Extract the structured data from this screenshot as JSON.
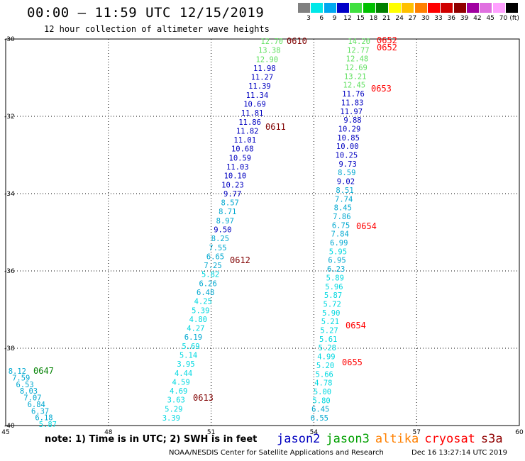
{
  "title": "00:00 – 11:59 UTC 12/15/2019",
  "subtitle": "12 hour collection of altimeter wave heights",
  "legend": {
    "unit": "(ft)",
    "swatches": [
      {
        "color": "#808080",
        "label": "3"
      },
      {
        "color": "#00e8e8",
        "label": "6"
      },
      {
        "color": "#00a8f0",
        "label": "9"
      },
      {
        "color": "#0000c8",
        "label": "12"
      },
      {
        "color": "#40e040",
        "label": "15"
      },
      {
        "color": "#00c000",
        "label": "18"
      },
      {
        "color": "#008000",
        "label": "21"
      },
      {
        "color": "#ffff00",
        "label": "24"
      },
      {
        "color": "#ffc000",
        "label": "27"
      },
      {
        "color": "#ff8000",
        "label": "30"
      },
      {
        "color": "#ff0000",
        "label": "33"
      },
      {
        "color": "#d00000",
        "label": "36"
      },
      {
        "color": "#900000",
        "label": "39"
      },
      {
        "color": "#a000a0",
        "label": "42"
      },
      {
        "color": "#e070e0",
        "label": "45"
      },
      {
        "color": "#ffa0ff",
        "label": "70"
      },
      {
        "color": "#000000",
        "label": ""
      }
    ]
  },
  "axes": {
    "lat_ticks": [
      "-30",
      "-32",
      "-34",
      "-36",
      "-38",
      "-40"
    ],
    "lon_ticks": [
      "45",
      "48",
      "51",
      "54",
      "57",
      "60"
    ]
  },
  "tracks": {
    "left": [
      {
        "v": "8.12",
        "c": "#00a8d0"
      },
      {
        "v": "7.59",
        "c": "#00a8d0"
      },
      {
        "v": "6.53",
        "c": "#00a8d0"
      },
      {
        "v": "8.03",
        "c": "#00a8d0"
      },
      {
        "v": "7.07",
        "c": "#00a8d0"
      },
      {
        "v": "6.84",
        "c": "#00a8d0"
      },
      {
        "v": "6.37",
        "c": "#00a8d0"
      },
      {
        "v": "6.18",
        "c": "#00a8d0"
      },
      {
        "v": "5.87",
        "c": "#00d8e0"
      }
    ],
    "middle": [
      {
        "v": "12.70",
        "c": "#60e060"
      },
      {
        "v": "13.38",
        "c": "#60e060"
      },
      {
        "v": "12.90",
        "c": "#60e060"
      },
      {
        "v": "11.98",
        "c": "#0000c0"
      },
      {
        "v": "11.27",
        "c": "#0000c0"
      },
      {
        "v": "11.39",
        "c": "#0000c0"
      },
      {
        "v": "11.34",
        "c": "#0000c0"
      },
      {
        "v": "10.69",
        "c": "#0000c0"
      },
      {
        "v": "11.81",
        "c": "#0000c0"
      },
      {
        "v": "11.86",
        "c": "#0000c0"
      },
      {
        "v": "11.82",
        "c": "#0000c0"
      },
      {
        "v": "11.01",
        "c": "#0000c0"
      },
      {
        "v": "10.68",
        "c": "#0000c0"
      },
      {
        "v": "10.59",
        "c": "#0000c0"
      },
      {
        "v": "11.03",
        "c": "#0000c0"
      },
      {
        "v": "10.10",
        "c": "#0000c0"
      },
      {
        "v": "10.23",
        "c": "#0000c0"
      },
      {
        "v": "9.77",
        "c": "#0000c0"
      },
      {
        "v": "8.57",
        "c": "#00a8d0"
      },
      {
        "v": "8.71",
        "c": "#00a8d0"
      },
      {
        "v": "8.97",
        "c": "#00a8d0"
      },
      {
        "v": "9.50",
        "c": "#0000c0"
      },
      {
        "v": "8.25",
        "c": "#00a8d0"
      },
      {
        "v": "7.55",
        "c": "#00a8d0"
      },
      {
        "v": "6.65",
        "c": "#00a8d0"
      },
      {
        "v": "7.25",
        "c": "#00a8d0"
      },
      {
        "v": "5.82",
        "c": "#00d8e0"
      },
      {
        "v": "6.26",
        "c": "#00a8d0"
      },
      {
        "v": "6.48",
        "c": "#00a8d0"
      },
      {
        "v": "4.25",
        "c": "#00d8e0"
      },
      {
        "v": "5.39",
        "c": "#00d8e0"
      },
      {
        "v": "4.80",
        "c": "#00d8e0"
      },
      {
        "v": "4.27",
        "c": "#00d8e0"
      },
      {
        "v": "6.19",
        "c": "#00a8d0"
      },
      {
        "v": "5.69",
        "c": "#00d8e0"
      },
      {
        "v": "5.14",
        "c": "#00d8e0"
      },
      {
        "v": "3.95",
        "c": "#00d8e0"
      },
      {
        "v": "4.44",
        "c": "#00d8e0"
      },
      {
        "v": "4.59",
        "c": "#00d8e0"
      },
      {
        "v": "4.69",
        "c": "#00d8e0"
      },
      {
        "v": "3.63",
        "c": "#00d8e0"
      },
      {
        "v": "5.29",
        "c": "#00d8e0"
      },
      {
        "v": "3.39",
        "c": "#00d8e0"
      }
    ],
    "right": [
      {
        "v": "14.20",
        "c": "#60e060"
      },
      {
        "v": "12.77",
        "c": "#60e060"
      },
      {
        "v": "12.48",
        "c": "#60e060"
      },
      {
        "v": "12.69",
        "c": "#60e060"
      },
      {
        "v": "13.21",
        "c": "#60e060"
      },
      {
        "v": "12.45",
        "c": "#60e060"
      },
      {
        "v": "11.76",
        "c": "#0000c0"
      },
      {
        "v": "11.83",
        "c": "#0000c0"
      },
      {
        "v": "11.97",
        "c": "#0000c0"
      },
      {
        "v": "9.88",
        "c": "#0000c0"
      },
      {
        "v": "10.29",
        "c": "#0000c0"
      },
      {
        "v": "10.85",
        "c": "#0000c0"
      },
      {
        "v": "10.00",
        "c": "#0000c0"
      },
      {
        "v": "10.25",
        "c": "#0000c0"
      },
      {
        "v": "9.73",
        "c": "#0000c0"
      },
      {
        "v": "8.59",
        "c": "#00a8d0"
      },
      {
        "v": "9.02",
        "c": "#0000c0"
      },
      {
        "v": "8.51",
        "c": "#00a8d0"
      },
      {
        "v": "7.74",
        "c": "#00a8d0"
      },
      {
        "v": "8.45",
        "c": "#00a8d0"
      },
      {
        "v": "7.86",
        "c": "#00a8d0"
      },
      {
        "v": "6.75",
        "c": "#00a8d0"
      },
      {
        "v": "7.84",
        "c": "#00a8d0"
      },
      {
        "v": "6.99",
        "c": "#00a8d0"
      },
      {
        "v": "5.95",
        "c": "#00d8e0"
      },
      {
        "v": "6.95",
        "c": "#00a8d0"
      },
      {
        "v": "6.23",
        "c": "#00a8d0"
      },
      {
        "v": "5.89",
        "c": "#00d8e0"
      },
      {
        "v": "5.96",
        "c": "#00d8e0"
      },
      {
        "v": "5.87",
        "c": "#00d8e0"
      },
      {
        "v": "5.72",
        "c": "#00d8e0"
      },
      {
        "v": "5.90",
        "c": "#00d8e0"
      },
      {
        "v": "5.21",
        "c": "#00d8e0"
      },
      {
        "v": "5.27",
        "c": "#00d8e0"
      },
      {
        "v": "5.61",
        "c": "#00d8e0"
      },
      {
        "v": "5.28",
        "c": "#00d8e0"
      },
      {
        "v": "4.99",
        "c": "#00d8e0"
      },
      {
        "v": "5.20",
        "c": "#00d8e0"
      },
      {
        "v": "5.66",
        "c": "#00d8e0"
      },
      {
        "v": "4.78",
        "c": "#00d8e0"
      },
      {
        "v": "5.00",
        "c": "#00d8e0"
      },
      {
        "v": "5.80",
        "c": "#00d8e0"
      },
      {
        "v": "6.45",
        "c": "#00a8d0"
      },
      {
        "v": "6.55",
        "c": "#00a8d0"
      }
    ]
  },
  "time_labels": [
    {
      "t": "0647",
      "c": "#008000"
    },
    {
      "t": "0610",
      "c": "#800000"
    },
    {
      "t": "0611",
      "c": "#800000"
    },
    {
      "t": "0612",
      "c": "#800000"
    },
    {
      "t": "0613",
      "c": "#800000"
    },
    {
      "t": "0652",
      "c": "#ff0000"
    },
    {
      "t": "0652",
      "c": "#ff0000"
    },
    {
      "t": "0653",
      "c": "#ff0000"
    },
    {
      "t": "0654",
      "c": "#ff0000"
    },
    {
      "t": "0654",
      "c": "#ff0000"
    },
    {
      "t": "0655",
      "c": "#ff0000"
    }
  ],
  "footer": {
    "note": "note:  1) Time is in UTC;  2) SWH is in feet",
    "satellites": [
      {
        "name": "jason2",
        "color": "#0000c0"
      },
      {
        "name": "jason3",
        "color": "#00a000"
      },
      {
        "name": "altika",
        "color": "#ff8000"
      },
      {
        "name": "cryosat",
        "color": "#ff0000"
      },
      {
        "name": "s3a",
        "color": "#900000"
      }
    ],
    "credit": "NOAA/NESDIS Center for Satellite Applications and Research",
    "timestamp": "Dec 16 13:27:14 UTC 2019"
  }
}
